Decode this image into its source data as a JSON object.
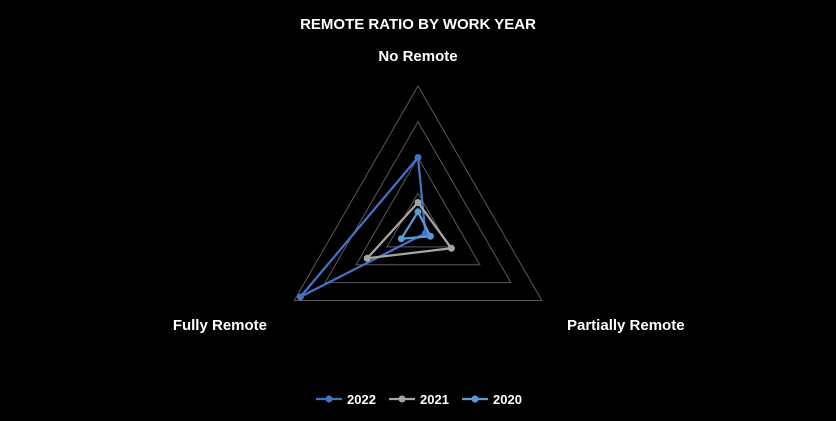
{
  "chart_data": {
    "type": "radar",
    "title": "REMOTE RATIO BY WORK YEAR",
    "categories": [
      "No Remote",
      "Partially Remote",
      "Fully Remote"
    ],
    "rmax": 200,
    "rings": 4,
    "series": [
      {
        "name": "2022",
        "values": [
          100,
          12,
          190
        ],
        "color": "#4472C4"
      },
      {
        "name": "2021",
        "values": [
          37,
          54,
          82
        ],
        "color": "#A5A5A5"
      },
      {
        "name": "2020",
        "values": [
          24,
          20,
          27
        ],
        "color": "#5B9BD5"
      }
    ],
    "grid_color": "#595959",
    "legend": "bottom"
  }
}
